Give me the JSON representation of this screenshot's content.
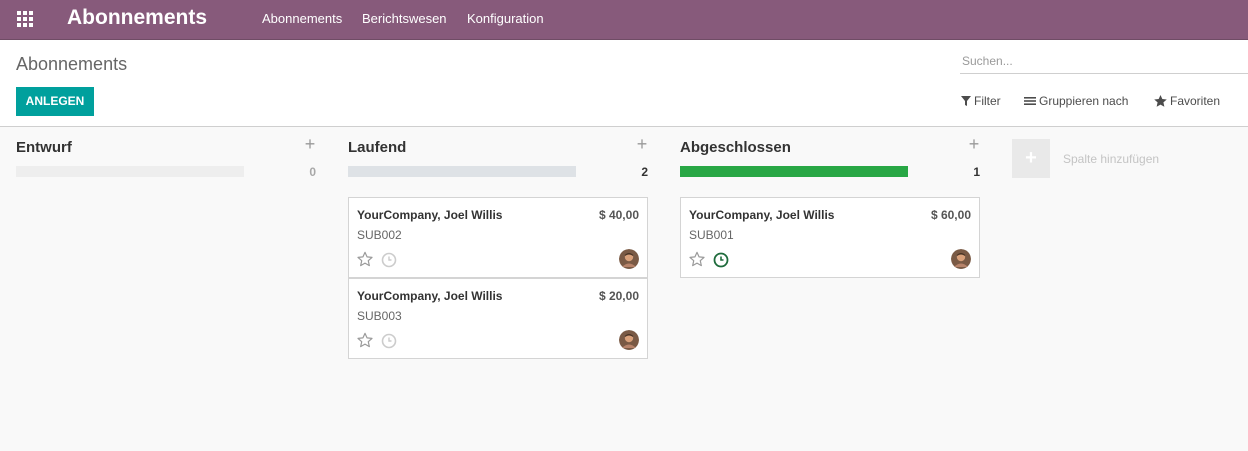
{
  "navbar": {
    "app_title": "Abonnements",
    "menu": [
      "Abonnements",
      "Berichtswesen",
      "Konfiguration"
    ],
    "apps_icon": "grid-icon"
  },
  "control_panel": {
    "breadcrumb": "Abonnements",
    "search_placeholder": "Suchen...",
    "create_label": "ANLEGEN",
    "filter_label": "Filter",
    "group_by_label": "Gruppieren nach",
    "favorites_label": "Favoriten"
  },
  "kanban": {
    "columns": [
      {
        "title": "Entwurf",
        "count": "0",
        "progress_fraction": 0,
        "cards": []
      },
      {
        "title": "Laufend",
        "count": "2",
        "progress_fraction": 0,
        "cards": [
          {
            "partner": "YourCompany, Joel Willis",
            "amount": "$ 40,00",
            "reference": "SUB002",
            "activity": "none"
          },
          {
            "partner": "YourCompany, Joel Willis",
            "amount": "$ 20,00",
            "reference": "SUB003",
            "activity": "none"
          }
        ]
      },
      {
        "title": "Abgeschlossen",
        "count": "1",
        "progress_fraction": 1,
        "cards": [
          {
            "partner": "YourCompany, Joel Willis",
            "amount": "$ 60,00",
            "reference": "SUB001",
            "activity": "planned"
          }
        ]
      }
    ],
    "add_column_label": "Spalte hinzufügen"
  },
  "colors": {
    "navbar": "#875a7b",
    "primary_button": "#00a09d",
    "progress_done": "#28a745",
    "activity_planned": "#1e6b3c"
  }
}
